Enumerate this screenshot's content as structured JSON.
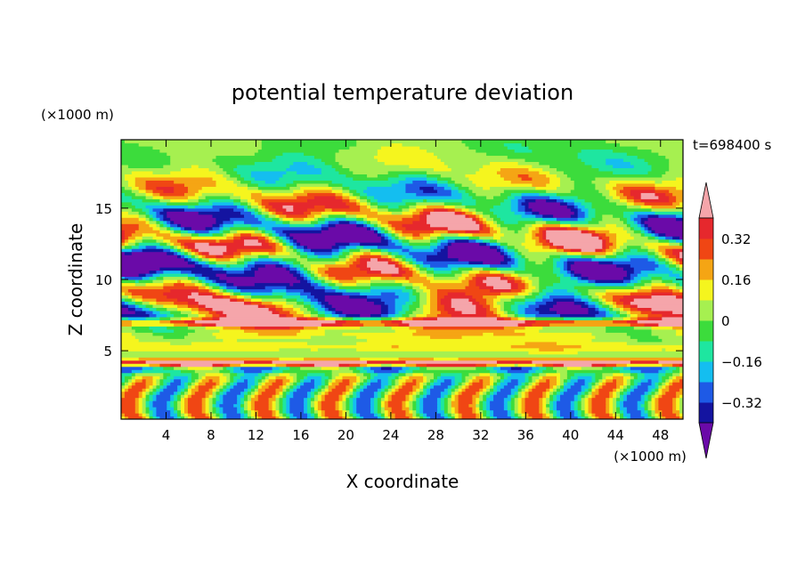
{
  "chart_data": {
    "type": "heatmap",
    "title": "potential temperature deviation",
    "xlabel": "X coordinate",
    "ylabel": "Z coordinate",
    "x_unit": "(×1000 m)",
    "y_unit": "(×1000 m)",
    "time_label": "t=698400 s",
    "xlim": [
      0,
      50
    ],
    "ylim": [
      0.2,
      19.8
    ],
    "x_ticks": [
      4,
      8,
      12,
      16,
      20,
      24,
      28,
      32,
      36,
      40,
      44,
      48
    ],
    "y_ticks": [
      5,
      10,
      15
    ],
    "colorbar": {
      "tick_labels": [
        "0.32",
        "0.16",
        "0",
        "-0.16",
        "-0.32"
      ],
      "tick_values": [
        0.32,
        0.16,
        0,
        -0.16,
        -0.32
      ],
      "levels": [
        -0.4,
        -0.32,
        -0.24,
        -0.16,
        -0.08,
        0,
        0.08,
        0.16,
        0.24,
        0.32,
        0.4
      ],
      "colors": [
        "#6a0aa8",
        "#1414a0",
        "#1e5ae6",
        "#14bef0",
        "#1ee6a0",
        "#3cdc3c",
        "#a6f050",
        "#f5f51e",
        "#f5a514",
        "#f04614",
        "#e6282d",
        "#f5a5aa"
      ],
      "extend": "both"
    },
    "bands": [
      {
        "z": [
          0.2,
          3.5
        ],
        "pattern": "vertical plumes",
        "dominant": "cyan / green with red and blue cells"
      },
      {
        "z": [
          3.6,
          4.6
        ],
        "pattern": "horizontal stripe",
        "dominant": "pink over purple"
      },
      {
        "z": [
          5.0,
          6.8
        ],
        "pattern": "horizontal stripes",
        "dominant": "yellow / green"
      },
      {
        "z": [
          6.8,
          9.0
        ],
        "pattern": "layer",
        "dominant": "pink and purple"
      },
      {
        "z": [
          9.0,
          17.5
        ],
        "pattern": "elongated blobs",
        "dominant": "purple / pink / orange"
      },
      {
        "z": [
          17.5,
          19.8
        ],
        "pattern": "smooth",
        "dominant": "green"
      }
    ]
  }
}
